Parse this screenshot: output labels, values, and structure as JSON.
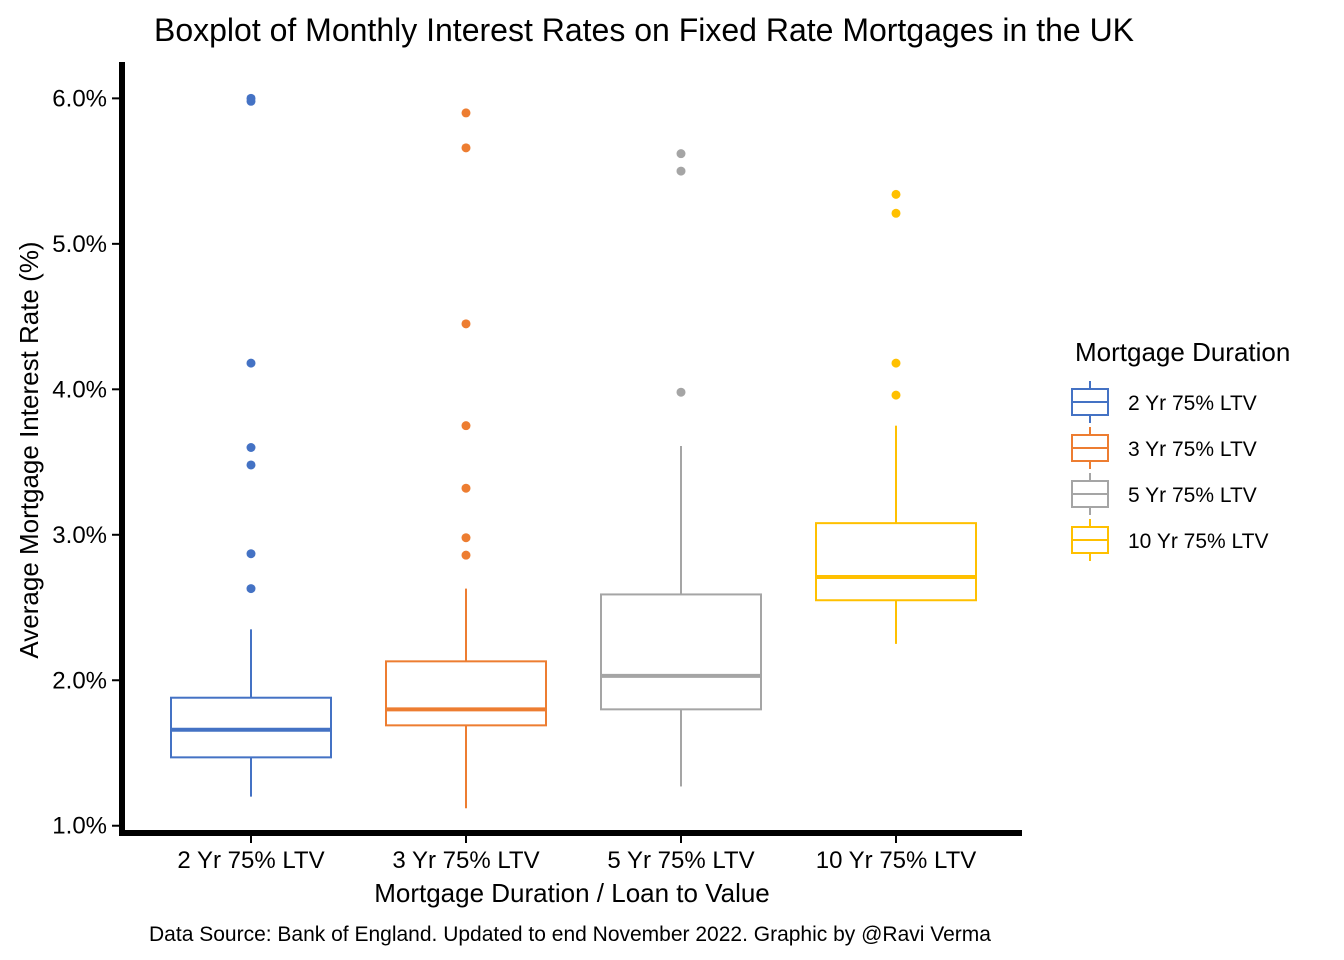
{
  "chart_data": {
    "type": "boxplot",
    "title": "Boxplot of Monthly Interest Rates on Fixed Rate Mortgages in the UK",
    "xlabel": "Mortgage Duration / Loan to Value",
    "ylabel": "Average Mortgage Interest Rate (%)",
    "caption": "Data Source: Bank of England. Updated to end November 2022. Graphic by @Ravi Verma",
    "legend": {
      "title": "Mortgage Duration",
      "placement": "right"
    },
    "ylim": [
      0.95,
      6.25
    ],
    "yticks": [
      {
        "value": 1.0,
        "label": "1.0%"
      },
      {
        "value": 2.0,
        "label": "2.0%"
      },
      {
        "value": 3.0,
        "label": "3.0%"
      },
      {
        "value": 4.0,
        "label": "4.0%"
      },
      {
        "value": 5.0,
        "label": "5.0%"
      },
      {
        "value": 6.0,
        "label": "6.0%"
      }
    ],
    "grid": false,
    "categories": [
      "2 Yr 75% LTV",
      "3 Yr 75% LTV",
      "5 Yr 75% LTV",
      "10 Yr 75% LTV"
    ],
    "series": [
      {
        "name": "2 Yr 75% LTV",
        "color": "#4472C4",
        "whisker_low": 1.2,
        "q1": 1.47,
        "median": 1.66,
        "q3": 1.88,
        "whisker_high": 2.35,
        "outliers": [
          2.63,
          2.87,
          3.48,
          3.6,
          4.18,
          5.98,
          6.0
        ]
      },
      {
        "name": "3 Yr 75% LTV",
        "color": "#ED7D31",
        "whisker_low": 1.12,
        "q1": 1.69,
        "median": 1.8,
        "q3": 2.13,
        "whisker_high": 2.63,
        "outliers": [
          2.86,
          2.98,
          3.32,
          3.75,
          4.45,
          5.66,
          5.9
        ]
      },
      {
        "name": "5 Yr 75% LTV",
        "color": "#A5A5A5",
        "whisker_low": 1.27,
        "q1": 1.8,
        "median": 2.03,
        "q3": 2.59,
        "whisker_high": 3.61,
        "outliers": [
          3.98,
          5.5,
          5.62
        ]
      },
      {
        "name": "10 Yr 75% LTV",
        "color": "#FFC000",
        "whisker_low": 2.25,
        "q1": 2.55,
        "median": 2.71,
        "q3": 3.08,
        "whisker_high": 3.75,
        "outliers": [
          3.96,
          4.18,
          5.21,
          5.34
        ]
      }
    ]
  }
}
